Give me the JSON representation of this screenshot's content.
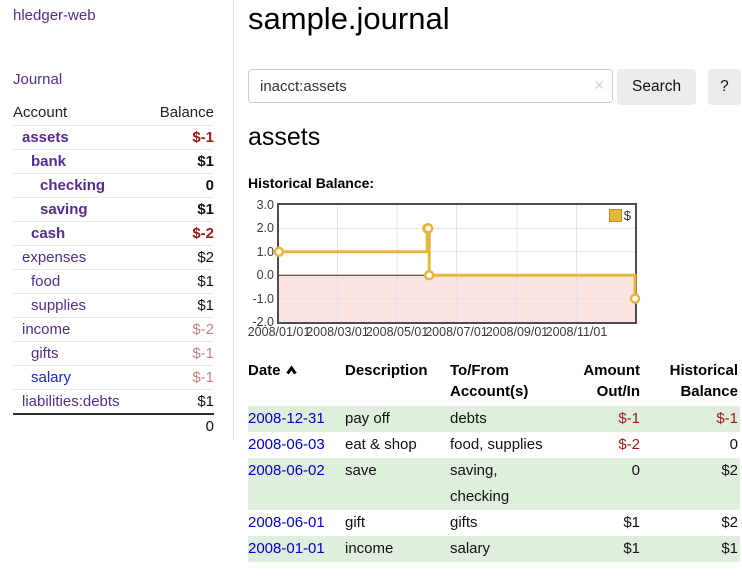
{
  "sidebar": {
    "app_title": "hledger-web",
    "nav": {
      "journal": "Journal"
    },
    "accounts": {
      "col_account": "Account",
      "col_balance": "Balance",
      "rows": [
        {
          "name": "assets",
          "balance": "$-1",
          "level": 1,
          "in_account": true
        },
        {
          "name": "bank",
          "balance": "$1",
          "level": 2,
          "in_account": true
        },
        {
          "name": "checking",
          "balance": "0",
          "level": 3,
          "in_account": true
        },
        {
          "name": "saving",
          "balance": "$1",
          "level": 3,
          "in_account": true
        },
        {
          "name": "cash",
          "balance": "$-2",
          "level": 2,
          "in_account": true
        },
        {
          "name": "expenses",
          "balance": "$2",
          "level": 1,
          "in_account": false
        },
        {
          "name": "food",
          "balance": "$1",
          "level": 2,
          "in_account": false
        },
        {
          "name": "supplies",
          "balance": "$1",
          "level": 2,
          "in_account": false
        },
        {
          "name": "income",
          "balance": "$-2",
          "level": 1,
          "in_account": false
        },
        {
          "name": "gifts",
          "balance": "$-1",
          "level": 2,
          "in_account": false
        },
        {
          "name": "salary",
          "balance": "$-1",
          "level": 2,
          "in_account": false
        },
        {
          "name": "liabilities:debts",
          "balance": "$1",
          "level": 1,
          "in_account": false
        }
      ],
      "total": "0"
    }
  },
  "main": {
    "title": "sample.journal",
    "search": {
      "value": "inacct:assets",
      "clear_icon": "✕",
      "search_button": "Search",
      "help_button": "?"
    },
    "account_heading": "assets",
    "chart_heading": "Historical Balance:",
    "register": {
      "col_date": "Date",
      "sort_icon": "chevron-up",
      "col_description": "Description",
      "col_accounts": "To/From Account(s)",
      "col_amount": "Amount Out/In",
      "col_balance": "Historical Balance",
      "rows": [
        {
          "date": "2008-12-31",
          "description": "pay off",
          "accounts": "debts",
          "amount": "$-1",
          "balance": "$-1"
        },
        {
          "date": "2008-06-03",
          "description": "eat & shop",
          "accounts": "food, supplies",
          "amount": "$-2",
          "balance": "0"
        },
        {
          "date": "2008-06-02",
          "description": "save",
          "accounts": "saving, checking",
          "amount": "0",
          "balance": "$2"
        },
        {
          "date": "2008-06-01",
          "description": "gift",
          "accounts": "gifts",
          "amount": "$1",
          "balance": "$2"
        },
        {
          "date": "2008-01-01",
          "description": "income",
          "accounts": "salary",
          "amount": "$1",
          "balance": "$1"
        }
      ]
    }
  },
  "chart_data": {
    "type": "line",
    "step": true,
    "title": "Historical Balance",
    "series": [
      {
        "name": "$",
        "x": [
          "2008-01-01",
          "2008-06-01",
          "2008-06-02",
          "2008-06-03",
          "2008-12-31"
        ],
        "values": [
          1,
          2,
          2,
          0,
          -1
        ]
      }
    ],
    "x_range": [
      "2008-01-01",
      "2008-12-31"
    ],
    "ylim": [
      -2,
      3
    ],
    "yticks": [
      {
        "label": "3.0",
        "value": 3
      },
      {
        "label": "2.0",
        "value": 2
      },
      {
        "label": "1.0",
        "value": 1
      },
      {
        "label": "0.0",
        "value": 0
      },
      {
        "label": "-1.0",
        "value": -1
      },
      {
        "label": "-2.0",
        "value": -2
      }
    ],
    "xticks": [
      {
        "label": "2008/01/01",
        "date": "2008-01-01"
      },
      {
        "label": "2008/03/01",
        "date": "2008-03-01"
      },
      {
        "label": "2008/05/01",
        "date": "2008-05-01"
      },
      {
        "label": "2008/07/01",
        "date": "2008-07-01"
      },
      {
        "label": "2008/09/01",
        "date": "2008-09-01"
      },
      {
        "label": "2008/11/01",
        "date": "2008-11-01"
      }
    ],
    "ygrid": [
      2,
      1,
      -1
    ],
    "legend_position": "top-right",
    "grid": true,
    "colors": {
      "line": "#e6b73c",
      "marker_fill": "#ffffff",
      "negative_region": "#fbe3e3",
      "zero_line": "#a40000",
      "grid": "#e3e3e3",
      "border": "#4d4d4d"
    }
  }
}
